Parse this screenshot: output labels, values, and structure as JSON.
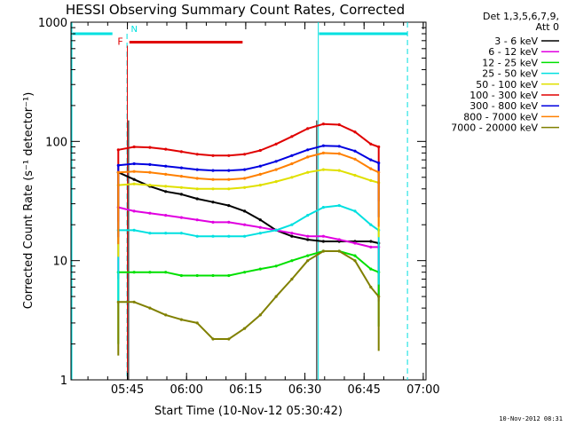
{
  "chart_data": {
    "type": "line",
    "title": "HESSI Observing Summary Count Rates, Corrected",
    "xlabel": "Start Time (10-Nov-12 05:30:42)",
    "ylabel": "Corrected Count Rate (s⁻¹ detector⁻¹)",
    "x_units": "minutes since 05:30:42",
    "xlim": [
      0,
      90
    ],
    "ylim": [
      1,
      1000
    ],
    "yscale": "log",
    "x_ticks": [
      {
        "x": 14.3,
        "label": "05:45"
      },
      {
        "x": 29.3,
        "label": "06:00"
      },
      {
        "x": 44.3,
        "label": "06:15"
      },
      {
        "x": 59.3,
        "label": "06:30"
      },
      {
        "x": 74.3,
        "label": "06:45"
      },
      {
        "x": 89.3,
        "label": "07:00"
      }
    ],
    "y_ticks": [
      {
        "y": 1,
        "label": "1"
      },
      {
        "y": 10,
        "label": "10"
      },
      {
        "y": 100,
        "label": "100"
      },
      {
        "y": 1000,
        "label": "1000"
      }
    ],
    "legend_header": [
      "Det 1,3,5,6,7,9,",
      "Att 0"
    ],
    "legend_position": "right",
    "flags": {
      "saa_label": "F",
      "night_label": "N",
      "saa_color": "#e00000",
      "night_color": "#00e0e0"
    },
    "timestamp": "10-Nov-2012 08:31",
    "x": [
      12,
      16,
      20,
      24,
      28,
      32,
      36,
      40,
      44,
      48,
      52,
      56,
      60,
      64,
      68,
      72,
      76,
      78
    ],
    "series": [
      {
        "name": "3 - 6 keV",
        "color": "#000000",
        "values": [
          55,
          48,
          42,
          38,
          36,
          33,
          31,
          29,
          26,
          22,
          18,
          16,
          15,
          14.5,
          14.5,
          14.5,
          14.5,
          14
        ]
      },
      {
        "name": "6 - 12 keV",
        "color": "#e000e0",
        "values": [
          28,
          26,
          25,
          24,
          23,
          22,
          21,
          21,
          20,
          19,
          18,
          17,
          16,
          16,
          15,
          14,
          13,
          13
        ]
      },
      {
        "name": "12 - 25 keV",
        "color": "#00e000",
        "values": [
          8,
          8,
          8,
          8,
          7.5,
          7.5,
          7.5,
          7.5,
          8,
          8.5,
          9,
          10,
          11,
          12,
          12,
          11,
          8.5,
          8
        ]
      },
      {
        "name": "25 - 50 keV",
        "color": "#00e0e0",
        "values": [
          18,
          18,
          17,
          17,
          17,
          16,
          16,
          16,
          16,
          17,
          18,
          20,
          24,
          28,
          29,
          26,
          20,
          18
        ]
      },
      {
        "name": "50 - 100 keV",
        "color": "#e0e000",
        "values": [
          43,
          44,
          43,
          42,
          41,
          40,
          40,
          40,
          41,
          43,
          46,
          50,
          55,
          58,
          57,
          52,
          47,
          45
        ]
      },
      {
        "name": "100 - 300 keV",
        "color": "#e00000",
        "values": [
          85,
          90,
          89,
          86,
          82,
          78,
          76,
          76,
          78,
          84,
          95,
          110,
          128,
          140,
          138,
          120,
          95,
          90
        ]
      },
      {
        "name": "300 - 800 keV",
        "color": "#0000e0",
        "values": [
          63,
          65,
          64,
          62,
          60,
          58,
          57,
          57,
          58,
          62,
          68,
          76,
          85,
          92,
          91,
          83,
          70,
          66
        ]
      },
      {
        "name": "800 - 7000 keV",
        "color": "#ff8000",
        "values": [
          55,
          56,
          55,
          53,
          51,
          49,
          48,
          48,
          49,
          53,
          58,
          65,
          74,
          80,
          79,
          71,
          59,
          55
        ]
      },
      {
        "name": "7000 - 20000 keV",
        "color": "#808000",
        "values": [
          4.5,
          4.5,
          4,
          3.5,
          3.2,
          3,
          2.2,
          2.2,
          2.7,
          3.5,
          5,
          7,
          10,
          12,
          12,
          10,
          6,
          5
        ]
      }
    ]
  }
}
